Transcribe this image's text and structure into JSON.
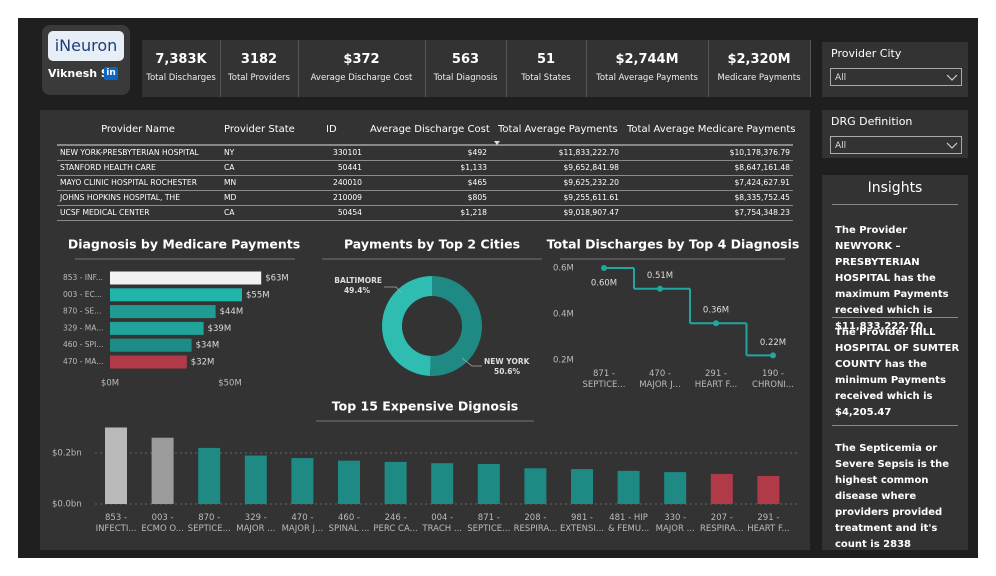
{
  "logo": {
    "brand": "iNeuron",
    "user": "Viknesh S",
    "badge": "in"
  },
  "kpis": [
    {
      "value": "7,383K",
      "label": "Total Discharges"
    },
    {
      "value": "3182",
      "label": "Total Providers"
    },
    {
      "value": "$372",
      "label": "Average Discharge Cost"
    },
    {
      "value": "563",
      "label": "Total Diagnosis"
    },
    {
      "value": "51",
      "label": "Total States"
    },
    {
      "value": "$2,744M",
      "label": "Total Average Payments"
    },
    {
      "value": "$2,320M",
      "label": "Medicare Payments"
    }
  ],
  "filters": [
    {
      "label": "Provider City",
      "selected": "All"
    },
    {
      "label": "DRG Definition",
      "selected": "All"
    }
  ],
  "table": {
    "columns": [
      "Provider Name",
      "Provider State",
      "ID",
      "Average Discharge Cost",
      "Total Average Payments",
      "Total Average Medicare Payments"
    ],
    "rows": [
      [
        "NEW YORK-PRESBYTERIAN HOSPITAL",
        "NY",
        "330101",
        "$492",
        "$11,833,222.70",
        "$10,178,376.79"
      ],
      [
        "STANFORD HEALTH CARE",
        "CA",
        "50441",
        "$1,133",
        "$9,652,841.98",
        "$8,647,161.48"
      ],
      [
        "MAYO CLINIC HOSPITAL ROCHESTER",
        "MN",
        "240010",
        "$465",
        "$9,625,232.20",
        "$7,424,627.91"
      ],
      [
        "JOHNS HOPKINS HOSPITAL, THE",
        "MD",
        "210009",
        "$805",
        "$9,255,611.61",
        "$8,335,752.45"
      ],
      [
        "UCSF MEDICAL CENTER",
        "CA",
        "50454",
        "$1,218",
        "$9,018,907.47",
        "$7,754,348.23"
      ]
    ]
  },
  "insights": {
    "title": "Insights",
    "items": [
      "The Provider NEWYORK – PRESBYTERIAN HOSPITAL has the maximum Payments received which is $11,833,222.70",
      "The Provider HILL HOSPITAL OF SUMTER COUNTY has the minimum Payments received which is $4,205.47",
      "The Septicemia or Severe Sepsis is the highest common disease where providers provided treatment and it's count is 2838"
    ]
  },
  "chart_data": [
    {
      "type": "hbar",
      "title": "Diagnosis by Medicare Payments",
      "categories": [
        "853 - INF...",
        "003 - EC...",
        "870 - SE...",
        "329 - MA...",
        "460 - SPI...",
        "470 - MA..."
      ],
      "values": [
        63,
        55,
        44,
        39,
        34,
        32
      ],
      "value_labels": [
        "$63M",
        "$55M",
        "$44M",
        "$39M",
        "$34M",
        "$32M"
      ],
      "colors": [
        "#f2f2f2",
        "#1fb5ab",
        "#1f9b93",
        "#22a39a",
        "#1d8c85",
        "#b23a48"
      ],
      "xlim": [
        0,
        70
      ],
      "xticks": [
        {
          "value": 0,
          "label": "$0M"
        },
        {
          "value": 50,
          "label": "$50M"
        }
      ]
    },
    {
      "type": "donut",
      "title": "Payments by Top 2 Cities",
      "categories": [
        "BALTIMORE",
        "NEW YORK"
      ],
      "values": [
        49.4,
        50.6
      ],
      "value_labels": [
        "49.4%",
        "50.6%"
      ],
      "colors": [
        "#2fbdb2",
        "#1f8a83"
      ]
    },
    {
      "type": "step",
      "title": "Total Discharges by Top 4 Diagnosis",
      "categories": [
        "871 - SEPTICE...",
        "470 - MAJOR J...",
        "291 - HEART F...",
        "190 - CHRONI..."
      ],
      "values": [
        0.6,
        0.51,
        0.36,
        0.22
      ],
      "value_labels": [
        "0.60M",
        "0.51M",
        "0.36M",
        "0.22M"
      ],
      "color": "#1fa89f",
      "ylim": [
        0.18,
        0.62
      ],
      "yticks": [
        {
          "value": 0.2,
          "label": "0.2M"
        },
        {
          "value": 0.4,
          "label": "0.4M"
        },
        {
          "value": 0.6,
          "label": "0.6M"
        }
      ],
      "grid": false
    },
    {
      "type": "bar",
      "title": "Top 15 Expensive Dignosis",
      "categories": [
        "853 - INFECTI...",
        "003 - ECMO O...",
        "870 - SEPTICE...",
        "329 - MAJOR ...",
        "470 - MAJOR J...",
        "460 - SPINAL ...",
        "246 - PERC CA...",
        "004 - TRACH ...",
        "871 - SEPTICE...",
        "208 - RESPIRA...",
        "981 - EXTENSI...",
        "481 - HIP & FEMU...",
        "330 - MAJOR ...",
        "207 - RESPIRA...",
        "291 - HEART F..."
      ],
      "values": [
        0.3,
        0.26,
        0.22,
        0.19,
        0.18,
        0.17,
        0.165,
        0.16,
        0.157,
        0.14,
        0.137,
        0.13,
        0.125,
        0.118,
        0.11
      ],
      "colors": [
        "#b9b9b9",
        "#9b9b9b",
        "#1f8a84",
        "#1f8a84",
        "#1f8a84",
        "#1f8a84",
        "#1f8a84",
        "#1f8a84",
        "#1f8a84",
        "#1f8a84",
        "#1f8a84",
        "#1f8a84",
        "#1f8a84",
        "#b03a48",
        "#b03a48"
      ],
      "ylim": [
        0,
        0.32
      ],
      "yticks": [
        {
          "value": 0,
          "label": "$0.0bn"
        },
        {
          "value": 0.2,
          "label": "$0.2bn"
        }
      ],
      "grid": true
    }
  ]
}
